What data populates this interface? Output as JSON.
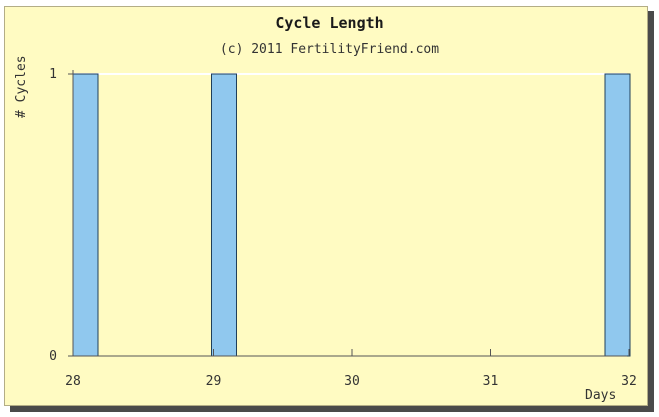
{
  "chart": {
    "title": "Cycle Length",
    "subtitle": "(c) 2011 FertilityFriend.com",
    "ylabel": "# Cycles",
    "xlabel": "Days"
  },
  "colors": {
    "background": "#fffbc2",
    "bar_fill": "#90c8ee",
    "bar_stroke": "#1f3f5a",
    "axis": "#555555"
  },
  "chart_data": {
    "type": "bar",
    "title": "Cycle Length",
    "subtitle": "(c) 2011 FertilityFriend.com",
    "xlabel": "Days",
    "ylabel": "# Cycles",
    "x_ticks": [
      "28",
      "29",
      "30",
      "31",
      "32"
    ],
    "y_ticks": [
      "0",
      "1"
    ],
    "xlim": [
      28,
      32
    ],
    "ylim": [
      0,
      1
    ],
    "series": [
      {
        "x": [
          28,
          29,
          32
        ],
        "values": [
          1,
          1,
          1
        ]
      }
    ],
    "grid": false,
    "legend": "none"
  }
}
